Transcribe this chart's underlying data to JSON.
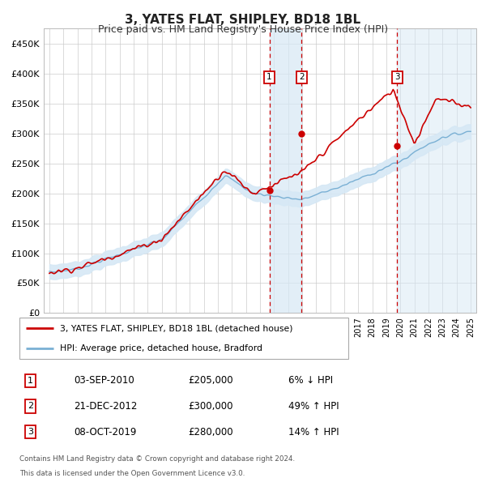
{
  "title": "3, YATES FLAT, SHIPLEY, BD18 1BL",
  "subtitle": "Price paid vs. HM Land Registry's House Price Index (HPI)",
  "ylim": [
    0,
    475000
  ],
  "yticks": [
    0,
    50000,
    100000,
    150000,
    200000,
    250000,
    300000,
    350000,
    400000,
    450000
  ],
  "ytick_labels": [
    "£0",
    "£50K",
    "£100K",
    "£150K",
    "£200K",
    "£250K",
    "£300K",
    "£350K",
    "£400K",
    "£450K"
  ],
  "xlim_start": 1994.6,
  "xlim_end": 2025.4,
  "transactions": [
    {
      "num": 1,
      "date": "03-SEP-2010",
      "price": 205000,
      "pct": "6%",
      "dir": "↓",
      "year": 2010.67
    },
    {
      "num": 2,
      "date": "21-DEC-2012",
      "price": 300000,
      "pct": "49%",
      "dir": "↑",
      "year": 2012.97
    },
    {
      "num": 3,
      "date": "08-OCT-2019",
      "price": 280000,
      "pct": "14%",
      "dir": "↑",
      "year": 2019.77
    }
  ],
  "property_color": "#cc0000",
  "hpi_color": "#7ab0d4",
  "hpi_fill_color": "#d6e8f5",
  "legend_property": "3, YATES FLAT, SHIPLEY, BD18 1BL (detached house)",
  "legend_hpi": "HPI: Average price, detached house, Bradford",
  "footer_line1": "Contains HM Land Registry data © Crown copyright and database right 2024.",
  "footer_line2": "This data is licensed under the Open Government Licence v3.0.",
  "background_color": "#ffffff",
  "grid_color": "#cccccc"
}
